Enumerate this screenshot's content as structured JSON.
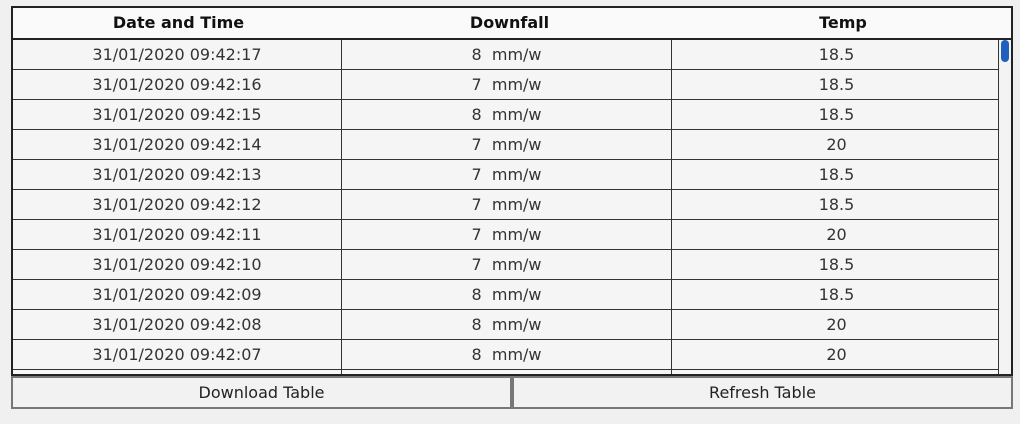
{
  "table": {
    "headers": [
      "Date and Time",
      "Downfall",
      "Temp"
    ],
    "rows": [
      {
        "datetime": "31/01/2020 09:42:17",
        "downfall": "8  mm/w",
        "temp": "18.5"
      },
      {
        "datetime": "31/01/2020 09:42:16",
        "downfall": "7  mm/w",
        "temp": "18.5"
      },
      {
        "datetime": "31/01/2020 09:42:15",
        "downfall": "8  mm/w",
        "temp": "18.5"
      },
      {
        "datetime": "31/01/2020 09:42:14",
        "downfall": "7  mm/w",
        "temp": "20"
      },
      {
        "datetime": "31/01/2020 09:42:13",
        "downfall": "7  mm/w",
        "temp": "18.5"
      },
      {
        "datetime": "31/01/2020 09:42:12",
        "downfall": "7  mm/w",
        "temp": "18.5"
      },
      {
        "datetime": "31/01/2020 09:42:11",
        "downfall": "7  mm/w",
        "temp": "20"
      },
      {
        "datetime": "31/01/2020 09:42:10",
        "downfall": "7  mm/w",
        "temp": "18.5"
      },
      {
        "datetime": "31/01/2020 09:42:09",
        "downfall": "8  mm/w",
        "temp": "18.5"
      },
      {
        "datetime": "31/01/2020 09:42:08",
        "downfall": "8  mm/w",
        "temp": "20"
      },
      {
        "datetime": "31/01/2020 09:42:07",
        "downfall": "8  mm/w",
        "temp": "20"
      }
    ]
  },
  "buttons": {
    "download_label": "Download Table",
    "refresh_label": "Refresh Table"
  },
  "colors": {
    "scrollbar_thumb": "#1f5fbf",
    "border": "#222222"
  }
}
